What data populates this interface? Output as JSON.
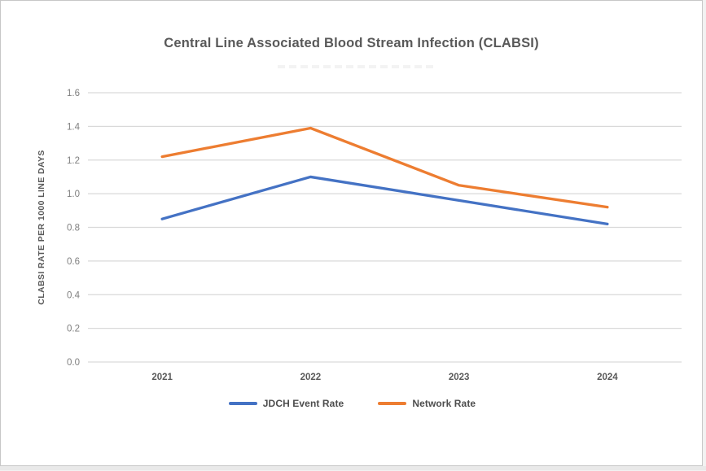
{
  "page": {
    "background_color": "#ffffff",
    "card_border_color": "#c7c7c7",
    "bottom_strip_color": "#e9e9e9"
  },
  "header": {
    "title": "Central Line Associated Blood Stream Infection (CLABSI)",
    "title_color": "#595959"
  },
  "chart_data": {
    "type": "line",
    "title": "Central Line Associated Blood Stream Infection (CLABSI)",
    "categories": [
      "2021",
      "2022",
      "2023",
      "2024"
    ],
    "series": [
      {
        "name": "JDCH Event Rate",
        "color": "#4472C4",
        "values": [
          0.85,
          1.1,
          0.96,
          0.82
        ]
      },
      {
        "name": "Network Rate",
        "color": "#ED7D31",
        "values": [
          1.22,
          1.39,
          1.05,
          0.92
        ]
      }
    ],
    "xlabel": "",
    "ylabel": "CLABSI RATE PER 1000 LINE DAYS",
    "ylim": [
      0.0,
      1.6
    ],
    "ytick_step": 0.2,
    "ytick_labels": [
      "0.0",
      "0.2",
      "0.4",
      "0.6",
      "0.8",
      "1.0",
      "1.2",
      "1.4",
      "1.6"
    ],
    "grid": "horizontal",
    "gridline_color": "#d9d9d9",
    "tick_label_color": "#7f7f7f",
    "axis_title_color": "#595959",
    "category_label_color": "#595959",
    "legend_position": "bottom"
  }
}
